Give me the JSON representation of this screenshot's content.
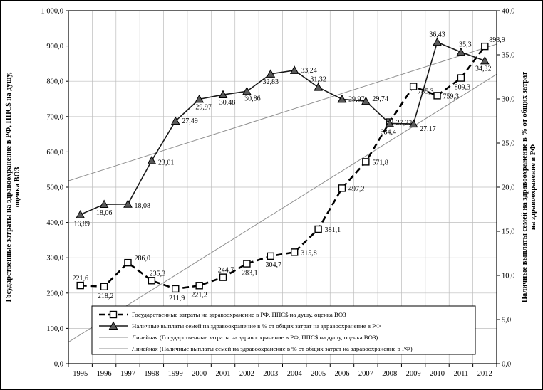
{
  "chart_data": {
    "type": "line",
    "title": "",
    "x_categories": [
      "1995",
      "1996",
      "1997",
      "1998",
      "1999",
      "2000",
      "2001",
      "2002",
      "2003",
      "2004",
      "2005",
      "2006",
      "2007",
      "2008",
      "2009",
      "2010",
      "2011",
      "2012"
    ],
    "left_axis": {
      "title_lines": [
        "Государственные  затраты  на здравоохранение в РФ, ППС$ на душу,",
        "оценка ВОЗ"
      ],
      "min": 0,
      "max": 1000,
      "step": 100,
      "ticks": [
        "0,0",
        "100,0",
        "200,0",
        "300,0",
        "400,0",
        "500,0",
        "600,0",
        "700,0",
        "800,0",
        "900,0",
        "1 000,0"
      ]
    },
    "right_axis": {
      "title_lines": [
        "Наличные выплаты семей на здравоохранение в % от общих затрат",
        "на здравоохранение в РФ"
      ],
      "min": 0,
      "max": 40,
      "step": 5,
      "ticks": [
        "0,0",
        "5,0",
        "10,0",
        "15,0",
        "20,0",
        "25,0",
        "30,0",
        "35,0",
        "40,0"
      ]
    },
    "series": [
      {
        "name": "Государственные затраты на здравоохранение в РФ, ППС$ на душу, оценка ВОЗ",
        "axis": "left",
        "line": "dashed",
        "marker": "square",
        "color": "#000000",
        "marker_fill": "#ffffff",
        "values": [
          221.6,
          218.2,
          286.0,
          235.3,
          211.9,
          221.2,
          244.7,
          283.1,
          304.7,
          315.8,
          381.1,
          497.2,
          571.8,
          684.4,
          785.3,
          759.3,
          809.3,
          898.9
        ],
        "point_labels": [
          "221,6",
          "218,2",
          "286,0",
          "235,3",
          "211,9",
          "221,2",
          "244,7",
          "283,1",
          "304,7",
          "315,8",
          "381,1",
          "497,2",
          "571,8",
          "684,4",
          "785,3",
          "759,3",
          "809,3",
          "898,9"
        ]
      },
      {
        "name": "Наличные выплаты семей на здравоохранение в % от общих затрат на здравоохранение в РФ",
        "axis": "right",
        "line": "solid",
        "marker": "triangle",
        "color": "#1a1a1a",
        "marker_fill": "#595959",
        "values": [
          16.89,
          18.06,
          18.08,
          23.01,
          27.49,
          29.97,
          30.48,
          30.86,
          32.83,
          33.24,
          31.32,
          29.97,
          29.74,
          27.22,
          27.17,
          36.43,
          35.3,
          34.32
        ],
        "point_labels": [
          "16,89",
          "18,06",
          "18,08",
          "23,01",
          "27,49",
          "29,97",
          "30,48",
          "30,86",
          "32,83",
          "33,24",
          "31,32",
          "29,97",
          "29,74",
          "27,22",
          "27,17",
          "36,43",
          "35,3",
          "34,32"
        ]
      }
    ],
    "trendlines": [
      {
        "label": "Линейная (Государственные затраты на здравоохранение в РФ, ППС$ на душу, оценка ВОЗ)",
        "series": 0,
        "color": "#8f8f8f"
      },
      {
        "label": "Линейная (Наличные выплаты семей на здравоохранение в % от общих затрат на здравоохранение в РФ)",
        "series": 1,
        "color": "#8f8f8f"
      }
    ],
    "grid": true,
    "legend_position": "inside-bottom"
  },
  "colors": {
    "grid": "#bdbdbd",
    "axis": "#000000"
  }
}
